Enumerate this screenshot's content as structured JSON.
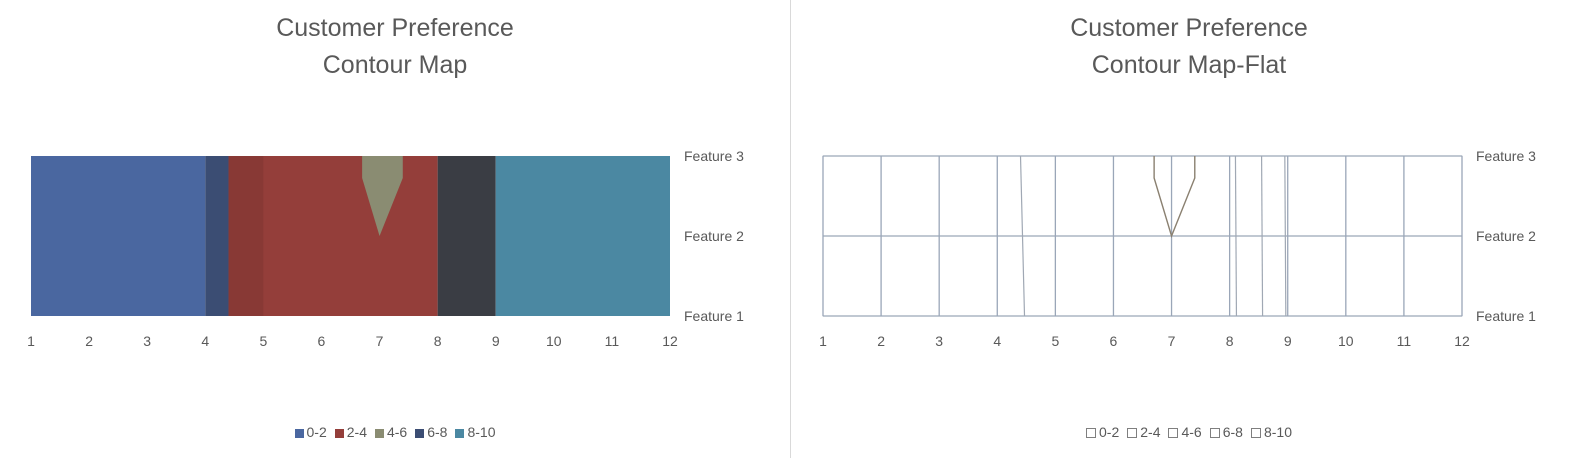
{
  "chart_data": [
    {
      "type": "contour",
      "title": [
        "Customer Preference",
        "Contour Map"
      ],
      "x": [
        1,
        2,
        3,
        4,
        5,
        6,
        7,
        8,
        9,
        10,
        11,
        12
      ],
      "y_categories": [
        "Feature 1",
        "Feature 2",
        "Feature 3"
      ],
      "legend": [
        "0-2",
        "2-4",
        "4-6",
        "6-8",
        "8-10"
      ],
      "legend_position": "bottom",
      "colors": {
        "0-2": "#4a67a0",
        "2-4": "#943e3a",
        "4-6": "#8a8c72",
        "6-8": "#3b4d73",
        "8-10": "#4b88a2",
        "dark": "#3a3d44"
      },
      "bands": [
        {
          "from": 1,
          "to": 4,
          "range": "0-2"
        },
        {
          "from": 4,
          "to": 4.4,
          "range": "6-8"
        },
        {
          "from": 4.4,
          "to": 8,
          "range": "2-4"
        },
        {
          "from": 8,
          "to": 9,
          "range": "dark"
        },
        {
          "from": 9,
          "to": 12,
          "range": "8-10"
        }
      ],
      "peak": {
        "x": 7,
        "y_from": "Feature 2",
        "y_to": "Feature 3",
        "x_top_left": 6.7,
        "x_top_right": 7.4,
        "range": "4-6"
      }
    },
    {
      "type": "contour-wireframe",
      "title": [
        "Customer Preference",
        "Contour Map-Flat"
      ],
      "x": [
        1,
        2,
        3,
        4,
        5,
        6,
        7,
        8,
        9,
        10,
        11,
        12
      ],
      "y_categories": [
        "Feature 1",
        "Feature 2",
        "Feature 3"
      ],
      "legend": [
        "0-2",
        "2-4",
        "4-6",
        "6-8",
        "8-10"
      ],
      "legend_position": "bottom",
      "contour_lines_x": [
        4.4,
        8.1,
        8.55,
        8.95
      ]
    }
  ]
}
